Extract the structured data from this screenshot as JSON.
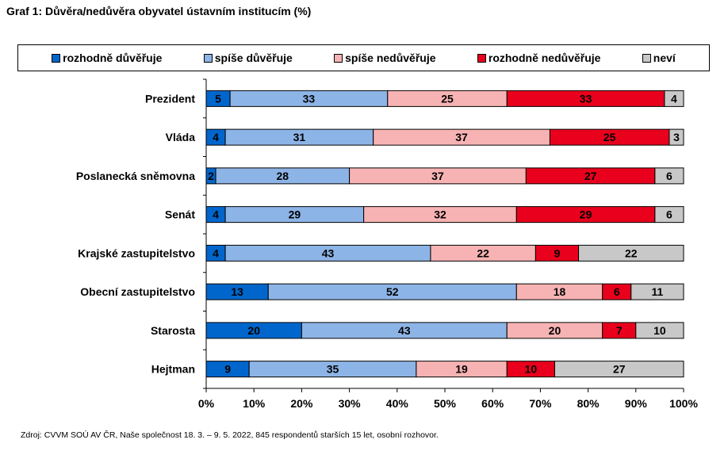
{
  "title": "Graf 1: Důvěra/nedůvěra obyvatel ústavním institucím (%)",
  "source": "Zdroj: CVVM SOÚ AV ČR, Naše společnost 18.  3. – 9. 5. 2022, 845 respondentů starších 15 let, osobní rozhovor.",
  "chart_data": {
    "type": "bar",
    "orientation": "horizontal",
    "stacked": "percent",
    "title": "Graf 1: Důvěra/nedůvěra obyvatel ústavním institucím (%)",
    "categories": [
      "Prezident",
      "Vláda",
      "Poslanecká sněmovna",
      "Senát",
      "Krajské zastupitelstvo",
      "Obecní zastupitelstvo",
      "Starosta",
      "Hejtman"
    ],
    "series": [
      {
        "name": "rozhodně důvěřuje",
        "color": "#0066cc",
        "values": [
          5,
          4,
          2,
          4,
          4,
          13,
          20,
          9
        ]
      },
      {
        "name": "spíše důvěřuje",
        "color": "#8db4e6",
        "values": [
          33,
          31,
          28,
          29,
          43,
          52,
          43,
          35
        ]
      },
      {
        "name": "spíše nedůvěřuje",
        "color": "#f7b3b3",
        "values": [
          25,
          37,
          37,
          32,
          22,
          18,
          20,
          19
        ]
      },
      {
        "name": "rozhodně nedůvěřuje",
        "color": "#e8001c",
        "values": [
          33,
          25,
          27,
          29,
          9,
          6,
          7,
          10
        ]
      },
      {
        "name": "neví",
        "color": "#c8c8c8",
        "values": [
          4,
          3,
          6,
          6,
          22,
          11,
          10,
          27
        ]
      }
    ],
    "xlim": [
      0,
      100
    ],
    "xticks": [
      "0%",
      "10%",
      "20%",
      "30%",
      "40%",
      "50%",
      "60%",
      "70%",
      "80%",
      "90%",
      "100%"
    ],
    "legend": "top",
    "grid": false
  }
}
